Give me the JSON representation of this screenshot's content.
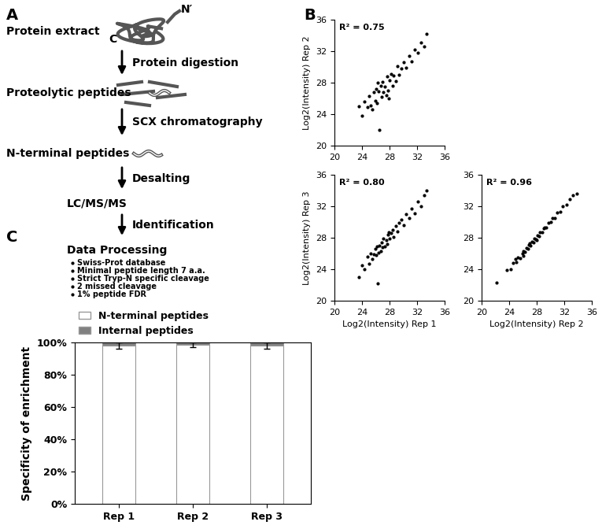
{
  "panel_labels": [
    "A",
    "B",
    "C"
  ],
  "diagram": {
    "nodes": [
      "Protein extract",
      "Proteolytic peptides",
      "N-terminal peptides",
      "LC/MS/MS",
      "Data Processing"
    ],
    "arrows": [
      "Protein digestion",
      "SCX chromatography",
      "Desalting",
      "Identification"
    ],
    "termini": {
      "n": "N′",
      "c": "C"
    },
    "data_processing_items": [
      "Swiss-Prot database",
      "Minimal peptide length 7 a.a.",
      "Strict Tryp-N specific cleavage",
      "2 missed cleavage",
      "1% peptide FDR"
    ]
  },
  "chart_data": [
    {
      "type": "scatter",
      "annotation": "R² = 0.75",
      "y_label": "Log2(Intensity) Rep 2",
      "xlim": [
        20,
        36
      ],
      "ylim": [
        20,
        36
      ],
      "xticks": [
        20,
        24,
        28,
        32,
        36
      ],
      "yticks": [
        20,
        24,
        28,
        32,
        36
      ],
      "color": "#000000",
      "marker": "o",
      "x": [
        23.5,
        24.0,
        24.3,
        24.8,
        25.0,
        25.2,
        25.5,
        25.7,
        25.9,
        26.0,
        26.2,
        26.4,
        26.5,
        26.7,
        26.9,
        27.0,
        27.1,
        27.3,
        27.5,
        27.6,
        27.8,
        28.0,
        28.2,
        28.4,
        28.6,
        28.9,
        29.1,
        29.4,
        29.7,
        30.0,
        30.4,
        30.8,
        31.2,
        31.6,
        32.1,
        32.6,
        33.0,
        33.4,
        26.3,
        27.9
      ],
      "values": [
        25.0,
        23.8,
        25.6,
        24.9,
        26.3,
        25.1,
        24.6,
        26.8,
        25.7,
        27.2,
        25.4,
        26.9,
        22.0,
        27.6,
        26.2,
        28.1,
        26.8,
        27.5,
        26.4,
        28.8,
        27.0,
        28.3,
        29.1,
        27.6,
        28.9,
        28.2,
        30.1,
        29.0,
        29.8,
        30.6,
        29.9,
        31.4,
        30.7,
        32.2,
        31.8,
        33.1,
        32.6,
        34.2,
        28.0,
        26.0
      ]
    },
    {
      "type": "scatter",
      "annotation": "R² = 0.80",
      "x_label": "Log2(Intensity) Rep 1",
      "y_label": "Log2(Intensity) Rep 3",
      "xlim": [
        20,
        36
      ],
      "ylim": [
        20,
        36
      ],
      "xticks": [
        20,
        24,
        28,
        32,
        36
      ],
      "yticks": [
        20,
        24,
        28,
        32,
        36
      ],
      "color": "#000000",
      "marker": "o",
      "x": [
        23.5,
        24.0,
        24.3,
        24.8,
        25.0,
        25.2,
        25.5,
        25.7,
        25.9,
        26.0,
        26.2,
        26.4,
        26.5,
        26.7,
        26.9,
        27.0,
        27.1,
        27.3,
        27.5,
        27.6,
        27.8,
        28.0,
        28.2,
        28.4,
        28.6,
        28.9,
        29.1,
        29.4,
        29.7,
        30.0,
        30.4,
        30.8,
        31.2,
        31.6,
        32.1,
        32.6,
        33.0,
        33.4,
        26.3,
        27.9
      ],
      "values": [
        23.0,
        24.5,
        24.0,
        25.6,
        24.7,
        26.0,
        25.3,
        25.9,
        26.6,
        25.8,
        26.9,
        26.1,
        27.0,
        26.3,
        27.4,
        26.8,
        27.9,
        26.9,
        27.7,
        27.2,
        28.4,
        27.9,
        28.6,
        29.0,
        28.1,
        29.5,
        28.8,
        29.9,
        30.3,
        29.6,
        31.0,
        30.5,
        31.7,
        31.1,
        32.6,
        32.0,
        33.4,
        34.0,
        22.2,
        28.7
      ]
    },
    {
      "type": "scatter",
      "annotation": "R² = 0.96",
      "x_label": "Log2(Intensity) Rep 2",
      "xlim": [
        20,
        36
      ],
      "ylim": [
        20,
        36
      ],
      "xticks": [
        20,
        24,
        28,
        32,
        36
      ],
      "yticks": [
        20,
        24,
        28,
        32,
        36
      ],
      "color": "#000000",
      "marker": "o",
      "x": [
        22.2,
        23.6,
        24.2,
        24.6,
        25.0,
        25.3,
        25.6,
        25.9,
        26.1,
        26.3,
        26.5,
        26.7,
        26.9,
        27.1,
        27.3,
        27.5,
        27.7,
        27.9,
        28.1,
        28.3,
        28.5,
        28.8,
        29.1,
        29.4,
        29.7,
        30.0,
        30.3,
        30.6,
        31.0,
        31.4,
        31.8,
        32.3,
        32.8,
        33.3,
        33.8,
        24.9,
        26.0,
        27.0,
        28.0,
        29.0
      ],
      "values": [
        22.3,
        23.9,
        24.0,
        24.8,
        24.9,
        25.5,
        25.4,
        26.0,
        26.3,
        26.2,
        26.7,
        26.6,
        27.1,
        27.0,
        27.5,
        27.4,
        27.9,
        27.8,
        28.3,
        28.2,
        28.7,
        28.7,
        29.3,
        29.3,
        29.9,
        30.0,
        30.5,
        30.5,
        31.2,
        31.3,
        32.0,
        32.2,
        32.9,
        33.4,
        33.6,
        25.3,
        25.7,
        27.3,
        27.7,
        29.2
      ]
    },
    {
      "type": "bar",
      "stacked": true,
      "legend": "upper left",
      "categories": [
        "Rep 1",
        "Rep 2",
        "Rep 3"
      ],
      "y_label": "Specificity of enrichment",
      "ylim": [
        0,
        100
      ],
      "yticks": [
        {
          "value": 0,
          "label": "0%"
        },
        {
          "value": 20,
          "label": "20%"
        },
        {
          "value": 40,
          "label": "40%"
        },
        {
          "value": 60,
          "label": "60%"
        },
        {
          "value": 80,
          "label": "80%"
        },
        {
          "value": 100,
          "label": "100%"
        }
      ],
      "series": [
        {
          "name": "N-terminal peptides",
          "color": "#ffffff",
          "values": [
            98.0,
            98.5,
            98.0
          ],
          "errors": [
            2.0,
            1.5,
            2.0
          ]
        },
        {
          "name": "Internal peptides",
          "color": "#808080",
          "values": [
            2.0,
            1.5,
            2.0
          ]
        }
      ]
    }
  ]
}
